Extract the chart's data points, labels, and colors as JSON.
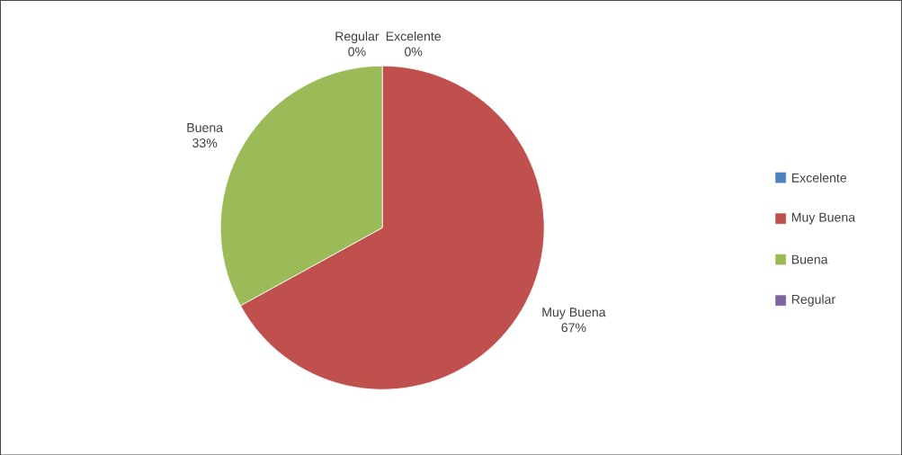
{
  "chart_data": {
    "type": "pie",
    "categories": [
      "Excelente",
      "Muy Buena",
      "Buena",
      "Regular"
    ],
    "values": [
      0,
      67,
      33,
      0
    ],
    "value_labels": [
      "0%",
      "67%",
      "33%",
      "0%"
    ],
    "colors": [
      "#4f81bd",
      "#c0504d",
      "#9bbb59",
      "#8064a2"
    ],
    "legend": "right"
  }
}
